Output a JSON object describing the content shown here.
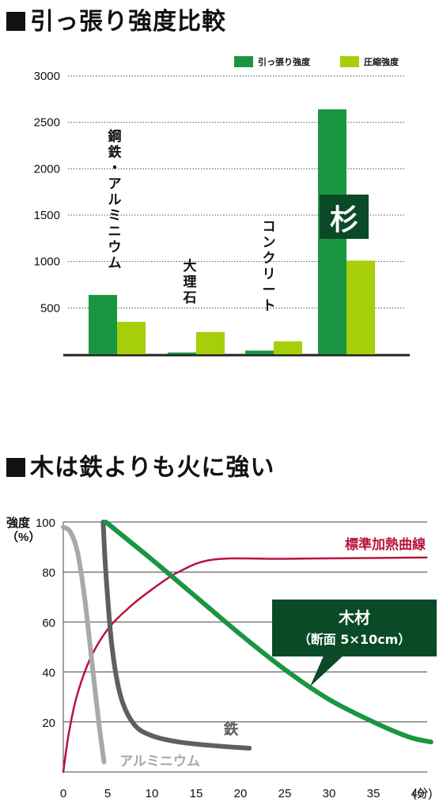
{
  "chart_data": [
    {
      "type": "bar",
      "title": "引っ張り強度比較",
      "ylim": [
        0,
        3000
      ],
      "yticks": [
        500,
        1000,
        1500,
        2000,
        2500,
        3000
      ],
      "grid": true,
      "legend_position": "top-right",
      "categories": [
        "鋼鉄・アルミニウム",
        "大理石",
        "コンクリート",
        "杉"
      ],
      "series": [
        {
          "name": "引っ張り強度",
          "color": "#1a9641",
          "values": [
            640,
            20,
            40,
            2640
          ]
        },
        {
          "name": "圧縮強度",
          "color": "#a6ce0a",
          "values": [
            350,
            240,
            140,
            1010
          ]
        }
      ],
      "category_labels": [
        {
          "text": "鋼鉄・アルミニウム",
          "boxed": false
        },
        {
          "text": "大理石",
          "boxed": false
        },
        {
          "text": "コンクリート",
          "boxed": false
        },
        {
          "text": "杉",
          "boxed": true,
          "box_color": "#0b4a26"
        }
      ]
    },
    {
      "type": "line",
      "title": "木は鉄よりも火に強い",
      "ylabel": "強度（%）",
      "xlabel_unit": "(分)",
      "xlim": [
        0,
        42
      ],
      "ylim": [
        0,
        100
      ],
      "xticks": [
        0,
        5,
        10,
        15,
        20,
        25,
        30,
        35,
        40
      ],
      "yticks": [
        20,
        40,
        60,
        80,
        100
      ],
      "grid": true,
      "series": [
        {
          "name": "標準加熱曲線",
          "color": "#b8143a",
          "x": [
            0,
            0.6,
            1.5,
            3,
            5,
            7.5,
            10,
            13,
            17,
            25,
            35,
            41
          ],
          "y": [
            0,
            15,
            30,
            45,
            57,
            66,
            73,
            80,
            85,
            85.3,
            85.6,
            85.8
          ]
        },
        {
          "name": "鉄",
          "color": "#5f5f5f",
          "x": [
            4.5,
            4.8,
            5.5,
            6.5,
            8,
            10,
            13,
            17,
            21
          ],
          "y": [
            100,
            80,
            50,
            30,
            19,
            14.5,
            12,
            10.5,
            9.5
          ]
        },
        {
          "name": "アルミニウム",
          "color": "#a9a9a9",
          "x": [
            0,
            0.8,
            1.6,
            2.4,
            3.2,
            4,
            4.6
          ],
          "y": [
            98,
            96,
            88,
            70,
            45,
            20,
            4
          ]
        },
        {
          "name": "木材",
          "sublabel": "（断面 5×10cm）",
          "color": "#1a9641",
          "x": [
            4.8,
            10,
            15,
            20,
            25,
            30,
            35,
            39,
            41.5
          ],
          "y": [
            100,
            85,
            70,
            55,
            41,
            29,
            20,
            14,
            12
          ]
        }
      ],
      "callout": {
        "title": "木材",
        "subtitle": "（断面 5×10cm）",
        "box_color": "#0b4a26"
      }
    }
  ]
}
